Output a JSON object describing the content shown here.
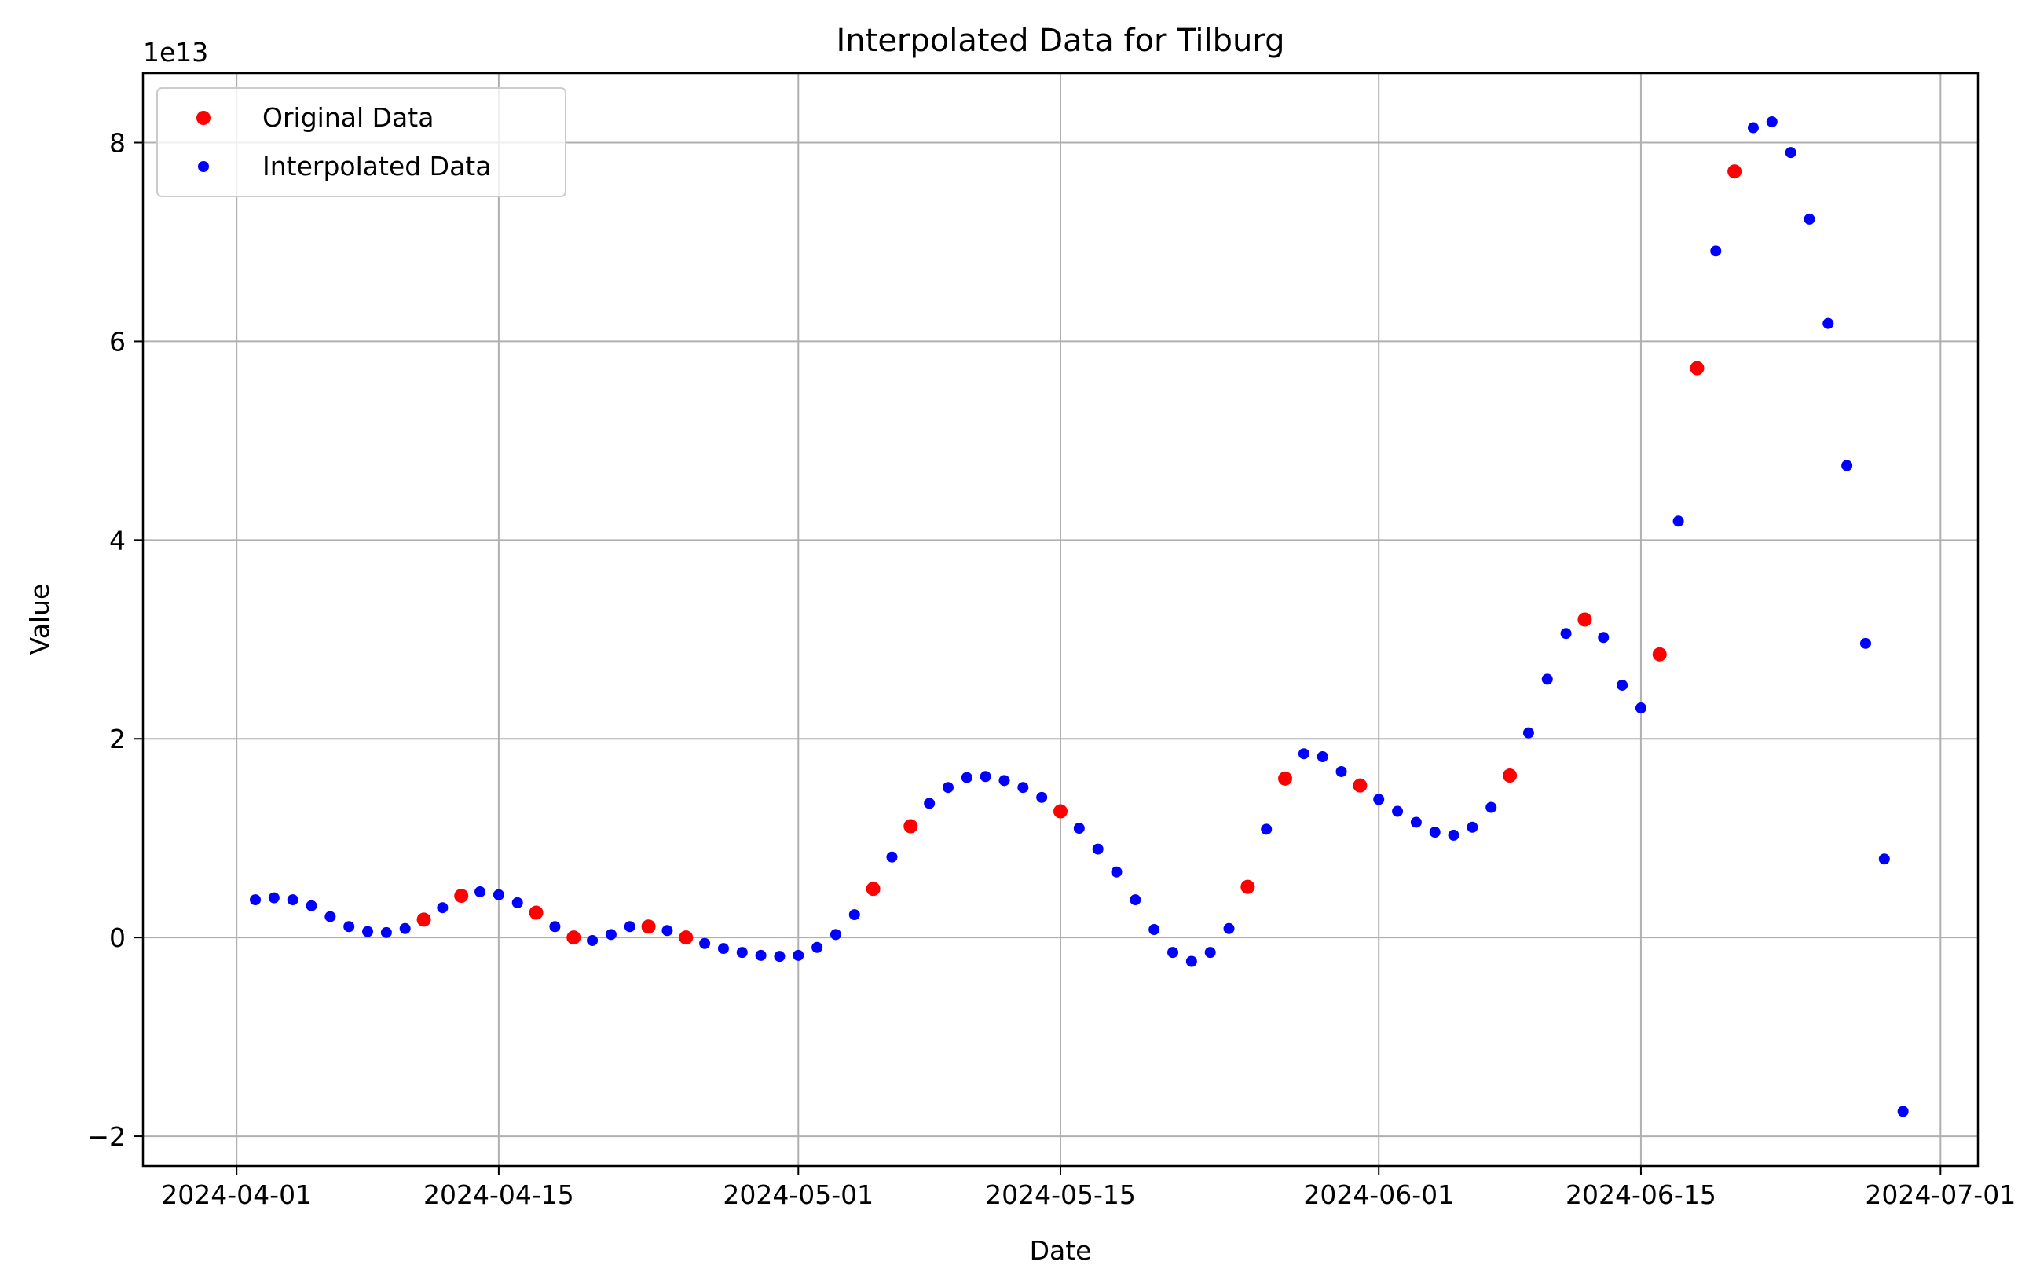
{
  "chart_data": {
    "type": "scatter",
    "title": "Interpolated Data for Tilburg",
    "xlabel": "Date",
    "ylabel": "Value",
    "y_offset_label": "1e13",
    "y_scale": 10000000000000.0,
    "xlim": [
      "2024-03-27",
      "2024-07-03"
    ],
    "ylim": [
      -2.3,
      8.7
    ],
    "grid": true,
    "legend_position": "top-left",
    "x_ticks": [
      {
        "date": "2024-04-01",
        "label": "2024-04-01"
      },
      {
        "date": "2024-04-15",
        "label": "2024-04-15"
      },
      {
        "date": "2024-05-01",
        "label": "2024-05-01"
      },
      {
        "date": "2024-05-15",
        "label": "2024-05-15"
      },
      {
        "date": "2024-06-01",
        "label": "2024-06-01"
      },
      {
        "date": "2024-06-15",
        "label": "2024-06-15"
      },
      {
        "date": "2024-07-01",
        "label": "2024-07-01"
      }
    ],
    "y_ticks": [
      {
        "value": -2,
        "label": "−2"
      },
      {
        "value": 0,
        "label": "0"
      },
      {
        "value": 2,
        "label": "2"
      },
      {
        "value": 4,
        "label": "4"
      },
      {
        "value": 6,
        "label": "6"
      },
      {
        "value": 8,
        "label": "8"
      }
    ],
    "series": [
      {
        "name": "Interpolated Data",
        "color": "#0000ff",
        "points": [
          {
            "x": "2024-04-02",
            "y": 0.38
          },
          {
            "x": "2024-04-03",
            "y": 0.4
          },
          {
            "x": "2024-04-04",
            "y": 0.38
          },
          {
            "x": "2024-04-05",
            "y": 0.32
          },
          {
            "x": "2024-04-06",
            "y": 0.21
          },
          {
            "x": "2024-04-07",
            "y": 0.11
          },
          {
            "x": "2024-04-08",
            "y": 0.06
          },
          {
            "x": "2024-04-09",
            "y": 0.05
          },
          {
            "x": "2024-04-10",
            "y": 0.09
          },
          {
            "x": "2024-04-12",
            "y": 0.3
          },
          {
            "x": "2024-04-14",
            "y": 0.46
          },
          {
            "x": "2024-04-15",
            "y": 0.43
          },
          {
            "x": "2024-04-16",
            "y": 0.35
          },
          {
            "x": "2024-04-18",
            "y": 0.11
          },
          {
            "x": "2024-04-20",
            "y": -0.03
          },
          {
            "x": "2024-04-21",
            "y": 0.03
          },
          {
            "x": "2024-04-22",
            "y": 0.11
          },
          {
            "x": "2024-04-24",
            "y": 0.07
          },
          {
            "x": "2024-04-26",
            "y": -0.06
          },
          {
            "x": "2024-04-27",
            "y": -0.11
          },
          {
            "x": "2024-04-28",
            "y": -0.15
          },
          {
            "x": "2024-04-29",
            "y": -0.18
          },
          {
            "x": "2024-04-30",
            "y": -0.19
          },
          {
            "x": "2024-05-01",
            "y": -0.18
          },
          {
            "x": "2024-05-02",
            "y": -0.1
          },
          {
            "x": "2024-05-03",
            "y": 0.03
          },
          {
            "x": "2024-05-04",
            "y": 0.23
          },
          {
            "x": "2024-05-06",
            "y": 0.81
          },
          {
            "x": "2024-05-08",
            "y": 1.35
          },
          {
            "x": "2024-05-09",
            "y": 1.51
          },
          {
            "x": "2024-05-10",
            "y": 1.61
          },
          {
            "x": "2024-05-11",
            "y": 1.62
          },
          {
            "x": "2024-05-12",
            "y": 1.58
          },
          {
            "x": "2024-05-13",
            "y": 1.51
          },
          {
            "x": "2024-05-14",
            "y": 1.41
          },
          {
            "x": "2024-05-16",
            "y": 1.1
          },
          {
            "x": "2024-05-17",
            "y": 0.89
          },
          {
            "x": "2024-05-18",
            "y": 0.66
          },
          {
            "x": "2024-05-19",
            "y": 0.38
          },
          {
            "x": "2024-05-20",
            "y": 0.08
          },
          {
            "x": "2024-05-21",
            "y": -0.15
          },
          {
            "x": "2024-05-22",
            "y": -0.24
          },
          {
            "x": "2024-05-23",
            "y": -0.15
          },
          {
            "x": "2024-05-24",
            "y": 0.09
          },
          {
            "x": "2024-05-26",
            "y": 1.09
          },
          {
            "x": "2024-05-28",
            "y": 1.85
          },
          {
            "x": "2024-05-29",
            "y": 1.82
          },
          {
            "x": "2024-05-30",
            "y": 1.67
          },
          {
            "x": "2024-06-01",
            "y": 1.39
          },
          {
            "x": "2024-06-02",
            "y": 1.27
          },
          {
            "x": "2024-06-03",
            "y": 1.16
          },
          {
            "x": "2024-06-04",
            "y": 1.06
          },
          {
            "x": "2024-06-05",
            "y": 1.03
          },
          {
            "x": "2024-06-06",
            "y": 1.11
          },
          {
            "x": "2024-06-07",
            "y": 1.31
          },
          {
            "x": "2024-06-09",
            "y": 2.06
          },
          {
            "x": "2024-06-10",
            "y": 2.6
          },
          {
            "x": "2024-06-11",
            "y": 3.06
          },
          {
            "x": "2024-06-13",
            "y": 3.02
          },
          {
            "x": "2024-06-14",
            "y": 2.54
          },
          {
            "x": "2024-06-15",
            "y": 2.31
          },
          {
            "x": "2024-06-17",
            "y": 4.19
          },
          {
            "x": "2024-06-19",
            "y": 6.91
          },
          {
            "x": "2024-06-21",
            "y": 8.15
          },
          {
            "x": "2024-06-22",
            "y": 8.21
          },
          {
            "x": "2024-06-23",
            "y": 7.9
          },
          {
            "x": "2024-06-24",
            "y": 7.23
          },
          {
            "x": "2024-06-25",
            "y": 6.18
          },
          {
            "x": "2024-06-26",
            "y": 4.75
          },
          {
            "x": "2024-06-27",
            "y": 2.96
          },
          {
            "x": "2024-06-28",
            "y": 0.79
          },
          {
            "x": "2024-06-29",
            "y": -1.75
          }
        ]
      },
      {
        "name": "Original Data",
        "color": "#ff0000",
        "points": [
          {
            "x": "2024-04-11",
            "y": 0.18
          },
          {
            "x": "2024-04-13",
            "y": 0.42
          },
          {
            "x": "2024-04-17",
            "y": 0.25
          },
          {
            "x": "2024-04-19",
            "y": 0.0
          },
          {
            "x": "2024-04-23",
            "y": 0.11
          },
          {
            "x": "2024-04-25",
            "y": 0.0
          },
          {
            "x": "2024-05-05",
            "y": 0.49
          },
          {
            "x": "2024-05-07",
            "y": 1.12
          },
          {
            "x": "2024-05-15",
            "y": 1.27
          },
          {
            "x": "2024-05-25",
            "y": 0.51
          },
          {
            "x": "2024-05-27",
            "y": 1.6
          },
          {
            "x": "2024-05-31",
            "y": 1.53
          },
          {
            "x": "2024-06-08",
            "y": 1.63
          },
          {
            "x": "2024-06-12",
            "y": 3.2
          },
          {
            "x": "2024-06-16",
            "y": 2.85
          },
          {
            "x": "2024-06-18",
            "y": 5.73
          },
          {
            "x": "2024-06-20",
            "y": 7.71
          }
        ]
      }
    ],
    "legend": [
      {
        "label": "Original Data",
        "color": "#ff0000"
      },
      {
        "label": "Interpolated Data",
        "color": "#0000ff"
      }
    ]
  }
}
